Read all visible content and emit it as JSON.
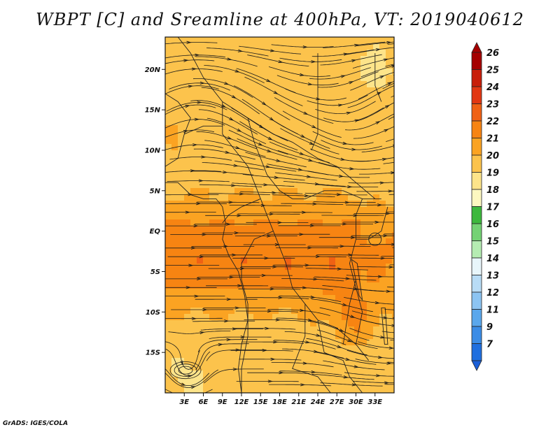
{
  "title": "WBPT [C] and Sreamline at 400hPa, VT: 2019040612",
  "credit": "GrADS: IGES/COLA",
  "map": {
    "variable": "Wet-bulb potential temperature",
    "units": "C",
    "level": "400hPa",
    "valid_time": "2019040612",
    "lat_range": [
      -20,
      24
    ],
    "lon_range": [
      0,
      36
    ],
    "lat_labels": [
      {
        "value": 20,
        "label": "20N"
      },
      {
        "value": 15,
        "label": "15N"
      },
      {
        "value": 10,
        "label": "10N"
      },
      {
        "value": 5,
        "label": "5N"
      },
      {
        "value": 0,
        "label": "EQ"
      },
      {
        "value": -5,
        "label": "5S"
      },
      {
        "value": -10,
        "label": "10S"
      },
      {
        "value": -15,
        "label": "15S"
      }
    ],
    "lon_labels": [
      {
        "value": 3,
        "label": "3E"
      },
      {
        "value": 6,
        "label": "6E"
      },
      {
        "value": 9,
        "label": "9E"
      },
      {
        "value": 12,
        "label": "12E"
      },
      {
        "value": 15,
        "label": "15E"
      },
      {
        "value": 18,
        "label": "18E"
      },
      {
        "value": 21,
        "label": "21E"
      },
      {
        "value": 24,
        "label": "24E"
      },
      {
        "value": 27,
        "label": "27E"
      },
      {
        "value": 30,
        "label": "30E"
      },
      {
        "value": 33,
        "label": "33E"
      }
    ]
  },
  "colorbar": {
    "levels": [
      {
        "label": "26",
        "color": "#a50000"
      },
      {
        "label": "25",
        "color": "#c81e0a"
      },
      {
        "label": "24",
        "color": "#e23712"
      },
      {
        "label": "23",
        "color": "#f06114"
      },
      {
        "label": "22",
        "color": "#f78412"
      },
      {
        "label": "21",
        "color": "#fba322"
      },
      {
        "label": "20",
        "color": "#fcc34c"
      },
      {
        "label": "19",
        "color": "#fde48a"
      },
      {
        "label": "18",
        "color": "#fdf8c0"
      },
      {
        "label": "17",
        "color": "#3db83d"
      },
      {
        "label": "16",
        "color": "#74d274"
      },
      {
        "label": "15",
        "color": "#b5ecb2"
      },
      {
        "label": "14",
        "color": "#e8f6fb"
      },
      {
        "label": "13",
        "color": "#b8dcf6"
      },
      {
        "label": "12",
        "color": "#8cc4f2"
      },
      {
        "label": "11",
        "color": "#5aa7ec"
      },
      {
        "label": "9",
        "color": "#3b8ce6"
      },
      {
        "label": "7",
        "color": "#1f6fdf"
      }
    ],
    "bottom_color": "#1a5fd8"
  }
}
